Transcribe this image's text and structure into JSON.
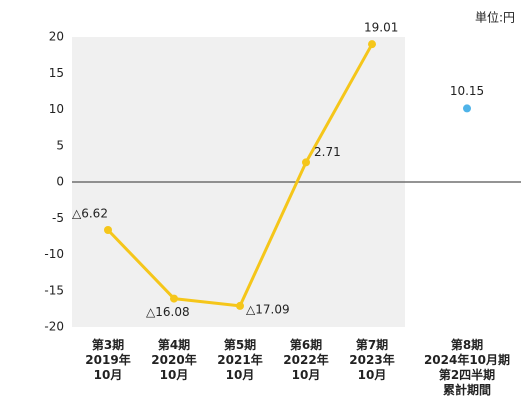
{
  "chart_data": {
    "type": "line",
    "unit_label": "単位:円",
    "categories": [
      [
        "第3期",
        "2019年",
        "10月"
      ],
      [
        "第4期",
        "2020年",
        "10月"
      ],
      [
        "第5期",
        "2021年",
        "10月"
      ],
      [
        "第6期",
        "2022年",
        "10月"
      ],
      [
        "第7期",
        "2023年",
        "10月"
      ],
      [
        "第8期",
        "2024年10月期",
        "第2四半期",
        "累計期間"
      ]
    ],
    "series": [
      {
        "color": "#f5c61a",
        "values": [
          -6.62,
          -16.08,
          -17.09,
          2.71,
          19.01,
          null
        ],
        "value_labels": [
          "△6.62",
          "△16.08",
          "△17.09",
          "2.71",
          "19.01",
          null
        ]
      },
      {
        "color": "#4fb3e8",
        "values": [
          null,
          null,
          null,
          null,
          null,
          10.15
        ],
        "value_labels": [
          null,
          null,
          null,
          null,
          null,
          "10.15"
        ]
      }
    ],
    "ylim": [
      -20,
      20
    ],
    "yticks": [
      -20,
      -15,
      -10,
      -5,
      0,
      5,
      10,
      15,
      20
    ]
  }
}
